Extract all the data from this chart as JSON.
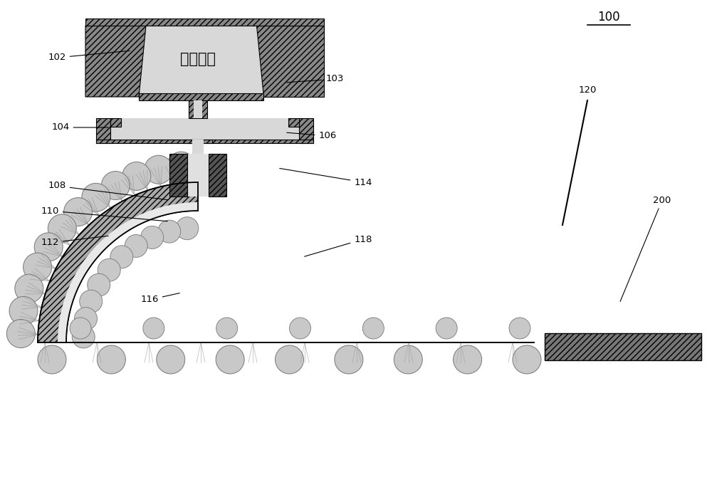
{
  "bg_color": "#ffffff",
  "ladle_text": "熔融的锂",
  "title_text": "100",
  "dark_gray": "#888888",
  "med_gray": "#aaaaaa",
  "light_gray": "#d8d8d8",
  "roller_gray": "#c8c8c8",
  "dot_gray": "#bbbbbb"
}
